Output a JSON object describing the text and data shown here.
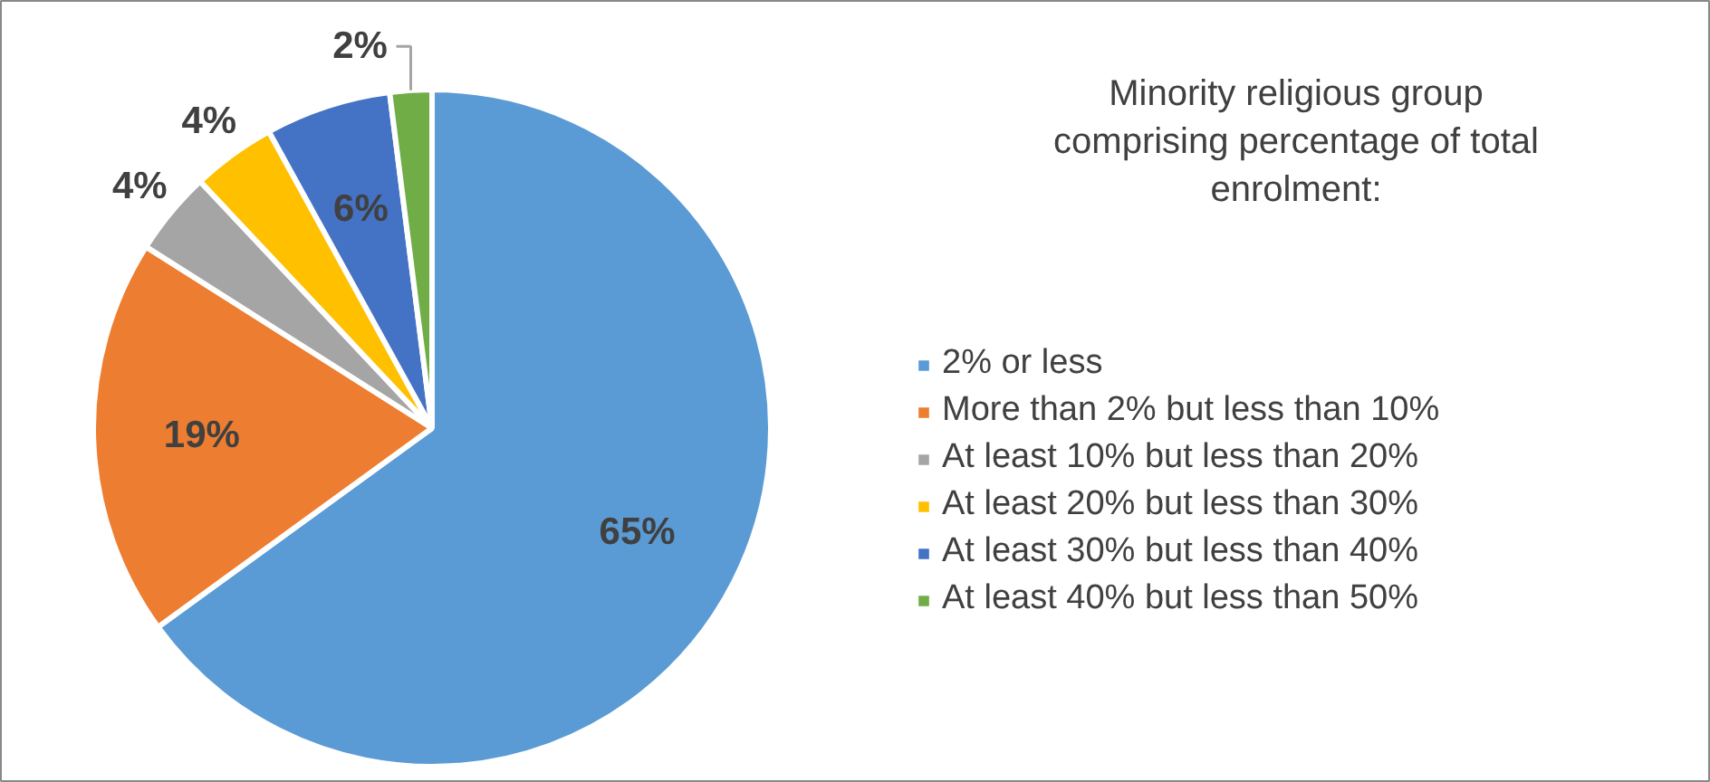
{
  "chart_data": {
    "type": "pie",
    "legend_title": "Minority religious group comprising percentage of total enrolment:",
    "categories": [
      "2% or less",
      "More than 2% but less than 10%",
      "At least 10% but less than 20%",
      "At least 20% but less than 30%",
      "At least 30% but less than 40%",
      "At least 40% but less than 50%"
    ],
    "values": [
      65,
      19,
      4,
      4,
      6,
      2
    ],
    "colors": [
      "#5b9bd5",
      "#ed7d31",
      "#a5a5a5",
      "#ffc000",
      "#4472c4",
      "#70ad47"
    ],
    "value_labels": [
      "65%",
      "19%",
      "4%",
      "4%",
      "6%",
      "2%"
    ],
    "legend": "right"
  }
}
